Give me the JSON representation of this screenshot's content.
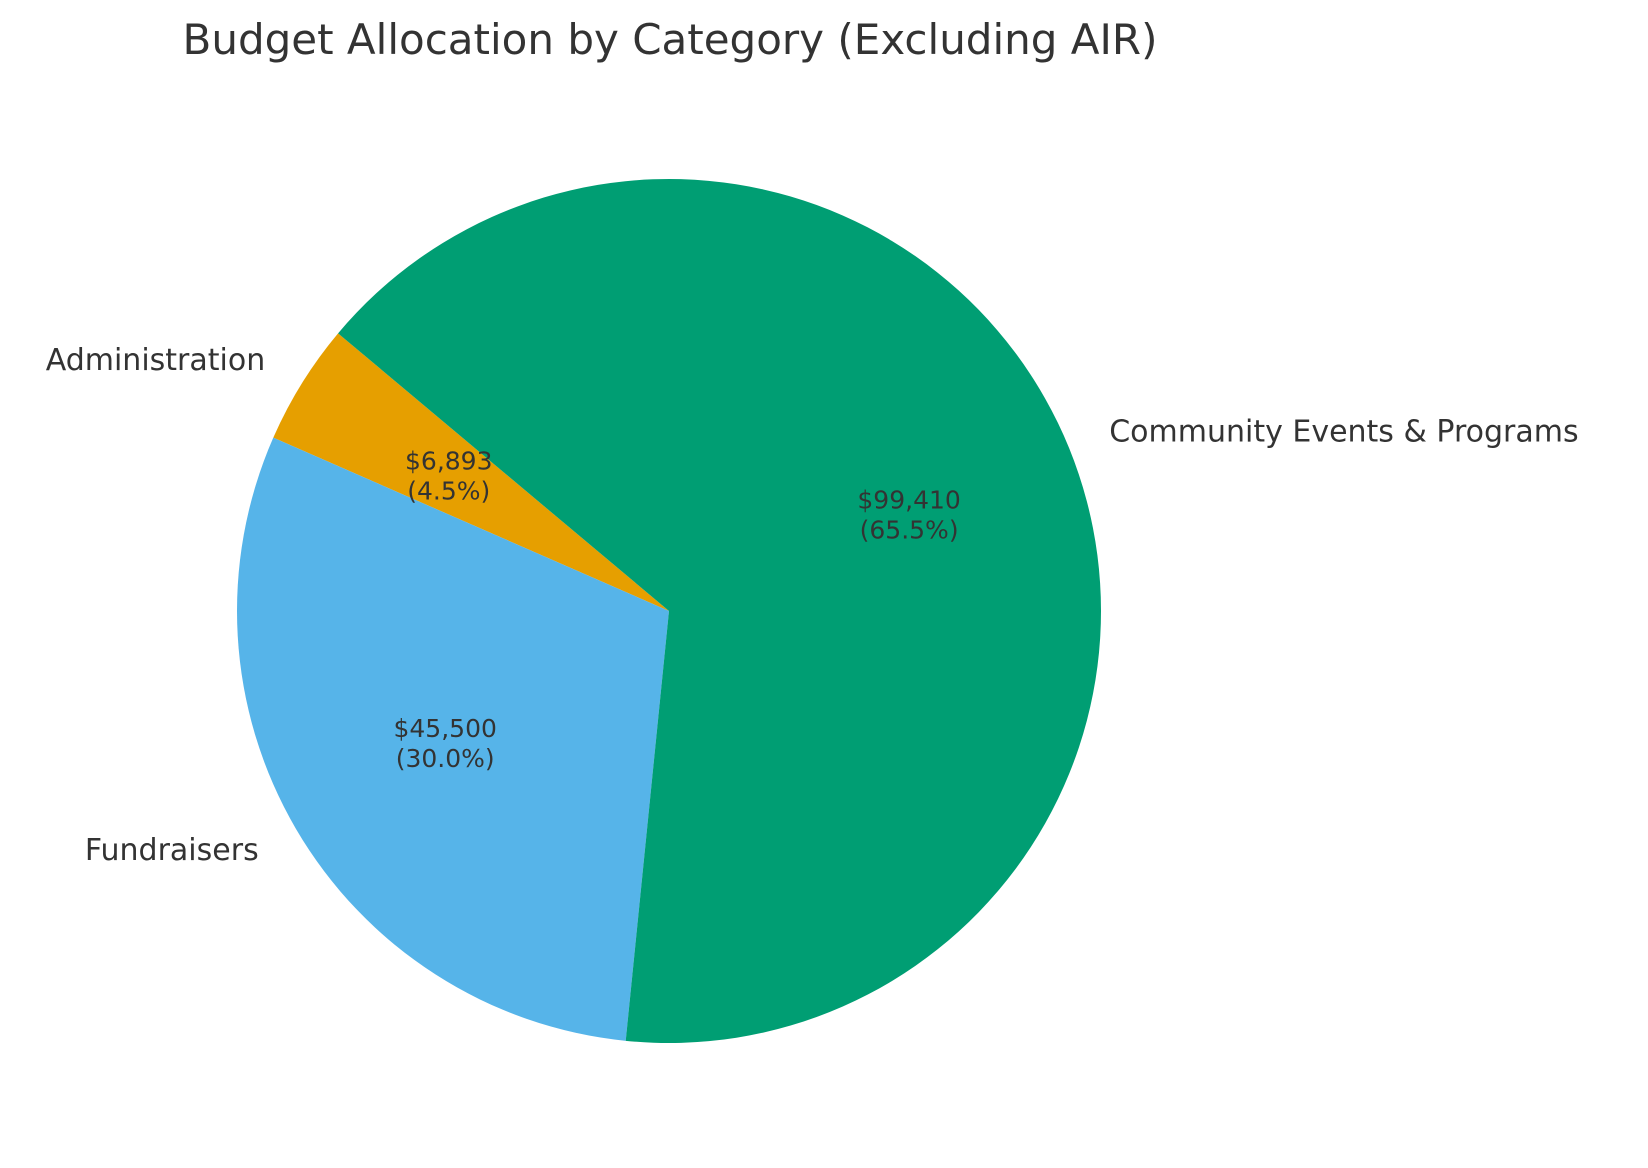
{
  "chart_data": {
    "type": "pie",
    "title": "Budget Allocation by Category (Excluding AIR)",
    "start_angle_deg": 140,
    "direction": "counterclockwise",
    "slices": [
      {
        "label": "Administration",
        "value": 6893,
        "value_label": "$6,893",
        "percent": 4.5,
        "percent_label": "(4.5%)",
        "color": "#E69F00"
      },
      {
        "label": "Fundraisers",
        "value": 45500,
        "value_label": "$45,500",
        "percent": 30.0,
        "percent_label": "(30.0%)",
        "color": "#56B4E9"
      },
      {
        "label": "Community Events & Programs",
        "value": 99410,
        "value_label": "$99,410",
        "percent": 65.5,
        "percent_label": "(65.5%)",
        "color": "#009E73"
      }
    ]
  }
}
